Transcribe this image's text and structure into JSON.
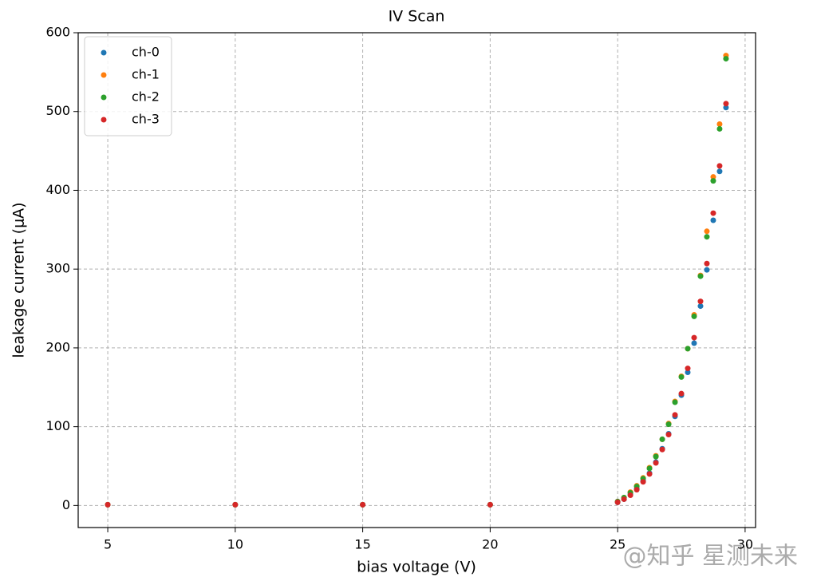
{
  "chart_data": {
    "type": "scatter",
    "title": "IV Scan",
    "xlabel": "bias voltage (V)",
    "ylabel": "leakage current (μA)",
    "x": [
      5,
      10,
      15,
      20,
      25,
      25.25,
      25.5,
      25.75,
      26,
      26.25,
      26.5,
      26.75,
      27,
      27.25,
      27.5,
      27.75,
      28,
      28.25,
      28.5,
      28.75,
      29,
      29.25
    ],
    "series": [
      {
        "name": "ch-0",
        "color": "#1f77b4",
        "values": [
          1,
          1,
          1,
          1,
          4,
          8,
          14,
          21,
          31,
          41,
          55,
          72,
          91,
          113,
          140,
          169,
          206,
          253,
          299,
          362,
          424,
          505
        ]
      },
      {
        "name": "ch-1",
        "color": "#ff7f0e",
        "values": [
          1,
          1,
          1,
          1,
          5,
          10,
          17,
          25,
          35,
          48,
          63,
          84,
          104,
          132,
          164,
          199,
          242,
          292,
          348,
          417,
          484,
          571
        ]
      },
      {
        "name": "ch-2",
        "color": "#2ca02c",
        "values": [
          1,
          1,
          1,
          1,
          5,
          10,
          16,
          24,
          34,
          47,
          62,
          84,
          103,
          131,
          163,
          199,
          240,
          291,
          341,
          412,
          478,
          567
        ]
      },
      {
        "name": "ch-3",
        "color": "#d62728",
        "values": [
          1,
          1,
          1,
          1,
          4,
          8,
          13,
          20,
          30,
          40,
          54,
          71,
          90,
          115,
          142,
          174,
          213,
          259,
          307,
          371,
          431,
          510
        ]
      }
    ],
    "xlim": [
      3.84,
      30.41
    ],
    "ylim": [
      -28,
      600
    ],
    "xticks": [
      5,
      10,
      15,
      20,
      25,
      30
    ],
    "yticks": [
      0,
      100,
      200,
      300,
      400,
      500,
      600
    ],
    "grid": true,
    "legend": "upper left"
  },
  "watermark": "@知乎 星测未来"
}
